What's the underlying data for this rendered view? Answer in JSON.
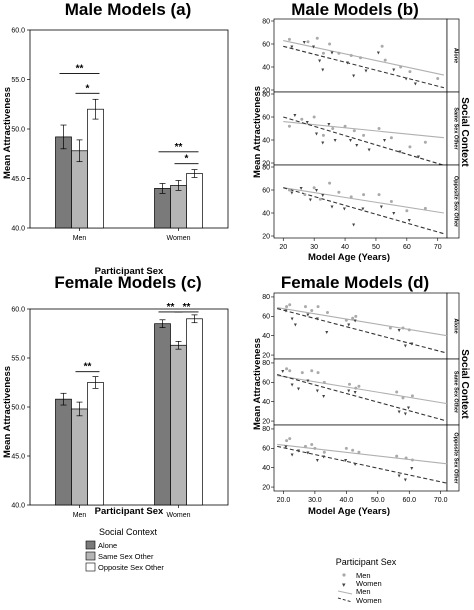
{
  "chart_data": [
    {
      "id": "a",
      "type": "bar",
      "title": "Male Models (a)",
      "xlabel": "Participant Sex",
      "ylabel": "Mean Attractiveness",
      "ylim": [
        40,
        60
      ],
      "yticks": [
        "40.0",
        "45.0",
        "50.0",
        "55.0",
        "60.0"
      ],
      "ytick_values": [
        40,
        45,
        50,
        55,
        60
      ],
      "categories": [
        "Men",
        "Women"
      ],
      "series": [
        {
          "name": "Alone",
          "color": "#7a7a7a",
          "values": [
            49.2,
            44.0
          ],
          "errors": [
            1.2,
            0.5
          ]
        },
        {
          "name": "Same Sex Other",
          "color": "#b5b5b5",
          "values": [
            47.8,
            44.3
          ],
          "errors": [
            1.1,
            0.5
          ]
        },
        {
          "name": "Opposite Sex Other",
          "color": "#ffffff",
          "values": [
            52.0,
            45.5
          ],
          "errors": [
            1.0,
            0.4
          ]
        }
      ],
      "significance": [
        {
          "category": 0,
          "from": 0,
          "to": 2,
          "y": 55.6,
          "label": "**"
        },
        {
          "category": 0,
          "from": 1,
          "to": 2,
          "y": 53.6,
          "label": "*"
        },
        {
          "category": 1,
          "from": 0,
          "to": 2,
          "y": 47.7,
          "label": "**"
        },
        {
          "category": 1,
          "from": 1,
          "to": 2,
          "y": 46.5,
          "label": "*"
        }
      ]
    },
    {
      "id": "b",
      "type": "scatter",
      "title": "Male Models (b)",
      "xlabel": "Model Age (Years)",
      "ylabel": "Mean Attractiveness",
      "group_label": "Social Context",
      "xlim": [
        17,
        73
      ],
      "ylim": [
        20,
        80
      ],
      "xticks": [
        "20",
        "30",
        "40",
        "50",
        "60",
        "70"
      ],
      "xtick_values": [
        20,
        30,
        40,
        50,
        60,
        70
      ],
      "yticks": [
        "20",
        "40",
        "60",
        "80"
      ],
      "ytick_values": [
        20,
        40,
        60,
        80
      ],
      "panels": [
        {
          "label": "Alone",
          "men_line": [
            [
              20,
              63
            ],
            [
              72,
              33
            ]
          ],
          "women_line": [
            [
              20,
              58
            ],
            [
              72,
              22
            ]
          ],
          "men_points": [
            [
              22,
              64
            ],
            [
              28,
              62
            ],
            [
              31,
              65
            ],
            [
              33,
              52
            ],
            [
              35,
              60
            ],
            [
              38,
              52
            ],
            [
              42,
              50
            ],
            [
              45,
              48
            ],
            [
              52,
              58
            ],
            [
              53,
              46
            ],
            [
              58,
              40
            ],
            [
              61,
              36
            ],
            [
              70,
              30
            ]
          ],
          "women_points": [
            [
              23,
              58
            ],
            [
              27,
              62
            ],
            [
              30,
              58
            ],
            [
              32,
              46
            ],
            [
              33,
              38
            ],
            [
              36,
              53
            ],
            [
              41,
              44
            ],
            [
              43,
              33
            ],
            [
              47,
              37
            ],
            [
              51,
              53
            ],
            [
              56,
              38
            ],
            [
              60,
              30
            ],
            [
              63,
              26
            ]
          ]
        },
        {
          "label": "Same Sex Other",
          "men_line": [
            [
              20,
              56
            ],
            [
              72,
              42
            ]
          ],
          "women_line": [
            [
              20,
              60
            ],
            [
              72,
              18
            ]
          ],
          "men_points": [
            [
              22,
              52
            ],
            [
              26,
              58
            ],
            [
              30,
              60
            ],
            [
              33,
              44
            ],
            [
              36,
              50
            ],
            [
              40,
              52
            ],
            [
              43,
              48
            ],
            [
              46,
              44
            ],
            [
              51,
              50
            ],
            [
              55,
              42
            ],
            [
              61,
              34
            ],
            [
              66,
              38
            ]
          ],
          "women_points": [
            [
              24,
              62
            ],
            [
              28,
              56
            ],
            [
              31,
              46
            ],
            [
              33,
              38
            ],
            [
              35,
              54
            ],
            [
              37,
              40
            ],
            [
              42,
              40
            ],
            [
              44,
              36
            ],
            [
              48,
              32
            ],
            [
              53,
              40
            ],
            [
              58,
              30
            ],
            [
              64,
              26
            ]
          ]
        },
        {
          "label": "Opposite Sex Other",
          "men_line": [
            [
              20,
              62
            ],
            [
              72,
              40
            ]
          ],
          "women_line": [
            [
              20,
              62
            ],
            [
              72,
              22
            ]
          ],
          "men_points": [
            [
              22,
              60
            ],
            [
              27,
              56
            ],
            [
              30,
              62
            ],
            [
              32,
              52
            ],
            [
              35,
              66
            ],
            [
              38,
              58
            ],
            [
              42,
              54
            ],
            [
              46,
              56
            ],
            [
              51,
              56
            ],
            [
              55,
              50
            ],
            [
              60,
              42
            ],
            [
              66,
              44
            ]
          ],
          "women_points": [
            [
              23,
              58
            ],
            [
              26,
              62
            ],
            [
              29,
              52
            ],
            [
              31,
              60
            ],
            [
              33,
              56
            ],
            [
              36,
              46
            ],
            [
              40,
              44
            ],
            [
              43,
              30
            ],
            [
              46,
              44
            ],
            [
              52,
              46
            ],
            [
              56,
              40
            ],
            [
              61,
              34
            ]
          ]
        }
      ]
    },
    {
      "id": "c",
      "type": "bar",
      "title": "Female Models (c)",
      "xlabel": "Participant Sex",
      "ylabel": "Mean Attractiveness",
      "ylim": [
        40,
        60
      ],
      "yticks": [
        "40.0",
        "45.0",
        "50.0",
        "55.0",
        "60.0"
      ],
      "ytick_values": [
        40,
        45,
        50,
        55,
        60
      ],
      "categories": [
        "Men",
        "Women"
      ],
      "series": [
        {
          "name": "Alone",
          "color": "#7a7a7a",
          "values": [
            50.8,
            58.5
          ],
          "errors": [
            0.6,
            0.4
          ]
        },
        {
          "name": "Same Sex Other",
          "color": "#b5b5b5",
          "values": [
            49.8,
            56.3
          ],
          "errors": [
            0.7,
            0.4
          ]
        },
        {
          "name": "Opposite Sex Other",
          "color": "#ffffff",
          "values": [
            52.5,
            59.0
          ],
          "errors": [
            0.6,
            0.4
          ]
        }
      ],
      "significance": [
        {
          "category": 0,
          "from": 1,
          "to": 2,
          "y": 53.6,
          "label": "**"
        },
        {
          "category": 1,
          "from": 0,
          "to": 1,
          "y": 59.7,
          "label": "**"
        },
        {
          "category": 1,
          "from": 1,
          "to": 2,
          "y": 59.7,
          "label": "**"
        }
      ]
    },
    {
      "id": "d",
      "type": "scatter",
      "title": "Female Models (d)",
      "xlabel": "Model Age (Years)",
      "ylabel": "Mean Attractiveness",
      "group_label": "Social Context",
      "xlim": [
        17,
        72
      ],
      "ylim": [
        18,
        82
      ],
      "xticks": [
        "20.0",
        "30.0",
        "40.0",
        "50.0",
        "60.0",
        "70.0"
      ],
      "xtick_values": [
        20,
        30,
        40,
        50,
        60,
        70
      ],
      "yticks": [
        "20",
        "40",
        "60",
        "80"
      ],
      "ytick_values": [
        20,
        40,
        60,
        80
      ],
      "panels": [
        {
          "label": "Alone",
          "men_line": [
            [
              18,
              69
            ],
            [
              72,
              40
            ]
          ],
          "women_line": [
            [
              18,
              68
            ],
            [
              72,
              22
            ]
          ],
          "men_points": [
            [
              21,
              70
            ],
            [
              22,
              72
            ],
            [
              27,
              70
            ],
            [
              29,
              66
            ],
            [
              31,
              70
            ],
            [
              34,
              64
            ],
            [
              40,
              56
            ],
            [
              42,
              58
            ],
            [
              43,
              60
            ],
            [
              54,
              48
            ],
            [
              58,
              48
            ],
            [
              60,
              46
            ]
          ],
          "women_points": [
            [
              21,
              66
            ],
            [
              23,
              58
            ],
            [
              24,
              52
            ],
            [
              28,
              62
            ],
            [
              31,
              58
            ],
            [
              34,
              44
            ],
            [
              41,
              52
            ],
            [
              43,
              56
            ],
            [
              57,
              46
            ],
            [
              59,
              30
            ],
            [
              61,
              32
            ]
          ]
        },
        {
          "label": "Same Sex Other",
          "men_line": [
            [
              18,
              67
            ],
            [
              72,
              38
            ]
          ],
          "women_line": [
            [
              18,
              68
            ],
            [
              72,
              20
            ]
          ],
          "men_points": [
            [
              21,
              74
            ],
            [
              22,
              72
            ],
            [
              26,
              70
            ],
            [
              29,
              72
            ],
            [
              31,
              70
            ],
            [
              33,
              60
            ],
            [
              41,
              58
            ],
            [
              43,
              54
            ],
            [
              44,
              56
            ],
            [
              56,
              50
            ],
            [
              58,
              44
            ],
            [
              61,
              46
            ]
          ],
          "women_points": [
            [
              20,
              72
            ],
            [
              23,
              58
            ],
            [
              25,
              54
            ],
            [
              28,
              62
            ],
            [
              31,
              52
            ],
            [
              33,
              46
            ],
            [
              41,
              52
            ],
            [
              43,
              50
            ],
            [
              57,
              30
            ],
            [
              59,
              28
            ],
            [
              60,
              34
            ]
          ]
        },
        {
          "label": "Opposite Sex Other",
          "men_line": [
            [
              18,
              64
            ],
            [
              72,
              44
            ]
          ],
          "women_line": [
            [
              18,
              62
            ],
            [
              72,
              24
            ]
          ],
          "men_points": [
            [
              21,
              68
            ],
            [
              22,
              70
            ],
            [
              27,
              62
            ],
            [
              29,
              64
            ],
            [
              30,
              60
            ],
            [
              33,
              56
            ],
            [
              40,
              60
            ],
            [
              42,
              58
            ],
            [
              44,
              56
            ],
            [
              56,
              52
            ],
            [
              59,
              50
            ],
            [
              61,
              48
            ]
          ],
          "women_points": [
            [
              21,
              62
            ],
            [
              23,
              54
            ],
            [
              25,
              58
            ],
            [
              28,
              56
            ],
            [
              31,
              48
            ],
            [
              33,
              52
            ],
            [
              40,
              48
            ],
            [
              43,
              44
            ],
            [
              57,
              32
            ],
            [
              59,
              28
            ],
            [
              61,
              40
            ]
          ]
        }
      ]
    }
  ],
  "legends": {
    "bar": {
      "title": "Social Context",
      "items": [
        "Alone",
        "Same Sex Other",
        "Opposite Sex Other"
      ]
    },
    "scatter": {
      "title": "Participant Sex",
      "items": [
        "Men",
        "Women",
        "Men",
        "Women"
      ]
    }
  },
  "colors": {
    "alone": "#7a7a7a",
    "same_sex": "#b5b5b5",
    "opposite_sex": "#ffffff",
    "men_line": "#333333",
    "women_line": "#b0b0b0",
    "men_point": "#444444",
    "women_point": "#aaaaaa"
  }
}
